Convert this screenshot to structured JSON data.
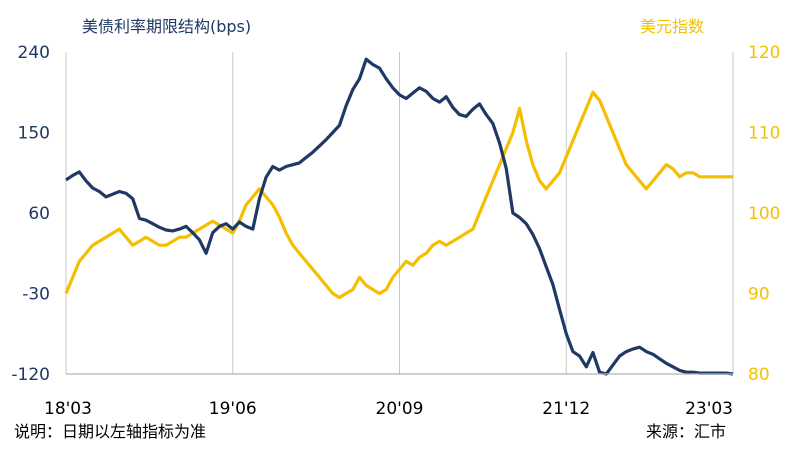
{
  "chart_data": {
    "type": "line",
    "y_left_label": "美债利率期限结构(bps)",
    "y_right_label": "美元指数",
    "y_left_ticks": [
      "240",
      "150",
      "60",
      "-30",
      "-120"
    ],
    "y_right_ticks": [
      "120",
      "110",
      "100",
      "90",
      "80"
    ],
    "x_ticks": [
      "18'03",
      "19'06",
      "20'09",
      "21'12",
      "23'03"
    ],
    "ylim_left": [
      -120,
      240
    ],
    "ylim_right": [
      80,
      120
    ],
    "grid": "vertical lines at x ticks",
    "note": "说明：日期以左轴指标为准",
    "source": "来源：汇市",
    "colors": {
      "left_series": "#1f3864",
      "right_series": "#f5be00",
      "grid": "#c9c9c9"
    },
    "series": [
      {
        "axis": "left",
        "x": [
          0.0,
          0.01,
          0.02,
          0.03,
          0.04,
          0.05,
          0.06,
          0.07,
          0.08,
          0.09,
          0.1,
          0.11,
          0.12,
          0.13,
          0.14,
          0.15,
          0.16,
          0.17,
          0.18,
          0.19,
          0.2,
          0.21,
          0.22,
          0.23,
          0.24,
          0.25,
          0.26,
          0.27,
          0.28,
          0.29,
          0.3,
          0.31,
          0.32,
          0.33,
          0.34,
          0.35,
          0.36,
          0.37,
          0.38,
          0.39,
          0.4,
          0.41,
          0.42,
          0.43,
          0.44,
          0.45,
          0.46,
          0.47,
          0.48,
          0.49,
          0.5,
          0.51,
          0.52,
          0.53,
          0.54,
          0.55,
          0.56,
          0.57,
          0.58,
          0.59,
          0.6,
          0.61,
          0.62,
          0.63,
          0.64,
          0.65,
          0.66,
          0.67,
          0.68,
          0.69,
          0.7,
          0.71,
          0.72,
          0.73,
          0.74,
          0.75,
          0.76,
          0.77,
          0.78,
          0.79,
          0.8,
          0.81,
          0.82,
          0.83,
          0.84,
          0.85,
          0.86,
          0.87,
          0.88,
          0.89,
          0.9,
          0.91,
          0.92,
          0.93,
          0.94,
          0.95,
          0.96,
          0.97,
          0.98,
          0.99,
          1.0
        ],
        "values": [
          97,
          102,
          106,
          96,
          88,
          84,
          78,
          81,
          84,
          82,
          76,
          54,
          52,
          48,
          44,
          41,
          40,
          42,
          45,
          38,
          30,
          15,
          38,
          45,
          48,
          42,
          50,
          45,
          42,
          76,
          100,
          112,
          108,
          112,
          114,
          116,
          122,
          128,
          135,
          142,
          150,
          158,
          180,
          198,
          210,
          232,
          226,
          222,
          210,
          200,
          192,
          188,
          194,
          200,
          196,
          188,
          184,
          190,
          178,
          170,
          168,
          176,
          182,
          170,
          160,
          138,
          110,
          60,
          55,
          48,
          36,
          20,
          0,
          -20,
          -48,
          -75,
          -95,
          -100,
          -112,
          -96,
          -118,
          -120,
          -110,
          -100,
          -95,
          -92,
          -90,
          -95,
          -98,
          -103,
          -108,
          -112,
          -116,
          -118,
          -118,
          -119,
          -119,
          -119,
          -119,
          -119,
          -120
        ]
      },
      {
        "axis": "right",
        "x": [
          0.0,
          0.01,
          0.02,
          0.03,
          0.04,
          0.05,
          0.06,
          0.07,
          0.08,
          0.09,
          0.1,
          0.11,
          0.12,
          0.13,
          0.14,
          0.15,
          0.16,
          0.17,
          0.18,
          0.19,
          0.2,
          0.21,
          0.22,
          0.23,
          0.24,
          0.25,
          0.26,
          0.27,
          0.28,
          0.29,
          0.3,
          0.31,
          0.32,
          0.33,
          0.34,
          0.35,
          0.36,
          0.37,
          0.38,
          0.39,
          0.4,
          0.41,
          0.42,
          0.43,
          0.44,
          0.45,
          0.46,
          0.47,
          0.48,
          0.49,
          0.5,
          0.51,
          0.52,
          0.53,
          0.54,
          0.55,
          0.56,
          0.57,
          0.58,
          0.59,
          0.6,
          0.61,
          0.62,
          0.63,
          0.64,
          0.65,
          0.66,
          0.67,
          0.68,
          0.69,
          0.7,
          0.71,
          0.72,
          0.73,
          0.74,
          0.75,
          0.76,
          0.77,
          0.78,
          0.79,
          0.8,
          0.81,
          0.82,
          0.83,
          0.84,
          0.85,
          0.86,
          0.87,
          0.88,
          0.89,
          0.9,
          0.91,
          0.92,
          0.93,
          0.94,
          0.95,
          0.96,
          0.97,
          0.98,
          0.99,
          1.0
        ],
        "values": [
          90,
          92,
          94,
          95,
          96,
          96.5,
          97,
          97.5,
          98,
          97,
          96,
          96.5,
          97,
          96.5,
          96,
          96,
          96.5,
          97,
          97,
          97.5,
          98,
          98.5,
          99,
          98.5,
          98,
          97.5,
          99,
          101,
          102,
          103,
          102,
          101,
          99.5,
          97.5,
          96,
          95,
          94,
          93,
          92,
          91,
          90,
          89.5,
          90,
          90.5,
          92,
          91,
          90.5,
          90,
          90.5,
          92,
          93,
          94,
          93.5,
          94.5,
          95,
          96,
          96.5,
          96,
          96.5,
          97,
          97.5,
          98,
          100,
          102,
          104,
          106,
          108,
          110,
          113,
          109,
          106,
          104,
          103,
          104,
          105,
          107,
          109,
          111,
          113,
          115,
          114,
          112,
          110,
          108,
          106,
          105,
          104,
          103,
          104,
          105,
          106,
          105.5,
          104.5,
          105,
          105,
          104.5,
          104.5,
          104.5,
          104.5,
          104.5,
          104.5
        ]
      }
    ]
  }
}
